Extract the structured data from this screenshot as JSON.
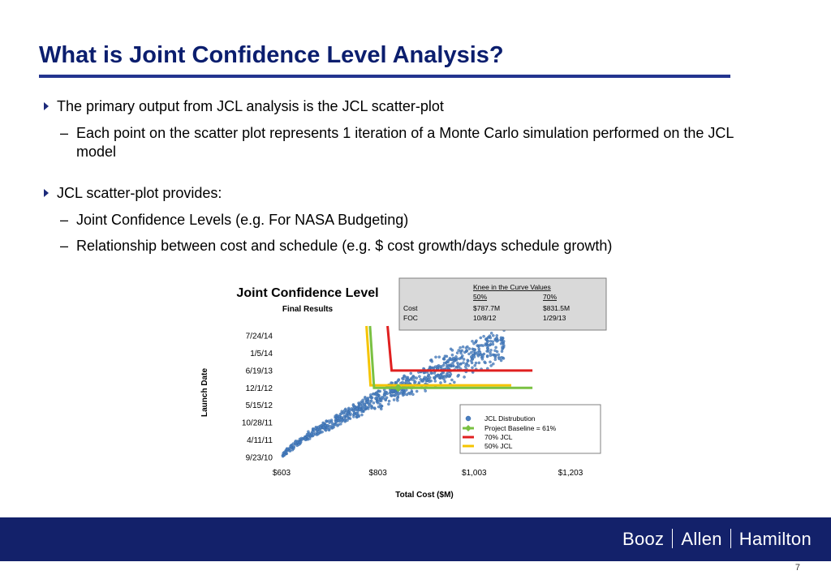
{
  "slide": {
    "title": "What is Joint Confidence Level Analysis?",
    "bullets": [
      {
        "text": "The primary output from JCL analysis is the JCL scatter-plot",
        "subs": [
          "Each point on the scatter plot represents 1 iteration of a Monte Carlo simulation performed on the JCL model"
        ]
      },
      {
        "text": "JCL scatter-plot provides:",
        "subs": [
          "Joint Confidence Levels (e.g. For NASA Budgeting)",
          "Relationship between cost and schedule (e.g. $ cost growth/days schedule growth)"
        ]
      }
    ],
    "page_number": "7"
  },
  "footer": {
    "brand_parts": [
      "Booz",
      "Allen",
      "Hamilton"
    ]
  },
  "colors": {
    "title": "#0b1e6e",
    "rule": "#23358f",
    "footer": "#13216a",
    "scatter": "#4a7fc1",
    "jcl70": "#e02020",
    "jcl50": "#f5c400",
    "baseline": "#7ac142"
  },
  "chart_data": {
    "type": "scatter",
    "title": "Joint Confidence Level",
    "subtitle": "Final Results",
    "xlabel": "Total Cost ($M)",
    "ylabel": "Launch Date",
    "x_ticks": [
      "$603",
      "$803",
      "$1,003",
      "$1,203"
    ],
    "x_tick_values": [
      603,
      803,
      1003,
      1203
    ],
    "xlim": [
      603,
      1203
    ],
    "y_ticks": [
      "9/23/10",
      "4/11/11",
      "10/28/11",
      "5/15/12",
      "12/1/12",
      "6/19/13",
      "1/5/14",
      "7/24/14"
    ],
    "ylim": [
      "9/23/10",
      "7/24/14"
    ],
    "series": [
      {
        "name": "JCL Distrubution",
        "kind": "scatter",
        "n_points": 800,
        "x_range": [
          605,
          1065
        ],
        "y_range": [
          "10/9/10",
          "8/15/14"
        ]
      },
      {
        "name": "Project Baseline = 61%",
        "kind": "L-line",
        "vertex": {
          "x": 795,
          "y": "12/1/12"
        },
        "x_end": 1124,
        "marker_x": 845
      },
      {
        "name": "70% JCL",
        "kind": "L-line",
        "vertex": {
          "x": 831.5,
          "y": "6/19/13"
        },
        "x_end": 1124
      },
      {
        "name": "50% JCL",
        "kind": "L-line",
        "vertex": {
          "x": 787.7,
          "y": "12/31/12"
        },
        "x_end": 1080
      }
    ],
    "table": {
      "header": [
        "",
        "Knee in the Curve  Values",
        ""
      ],
      "columns": [
        "",
        "50%",
        "70%"
      ],
      "rows": [
        [
          "Cost",
          "$787.7M",
          "$831.5M"
        ],
        [
          "FOC",
          "10/8/12",
          "1/29/13"
        ]
      ]
    },
    "legend_placement": "bottom-right"
  }
}
